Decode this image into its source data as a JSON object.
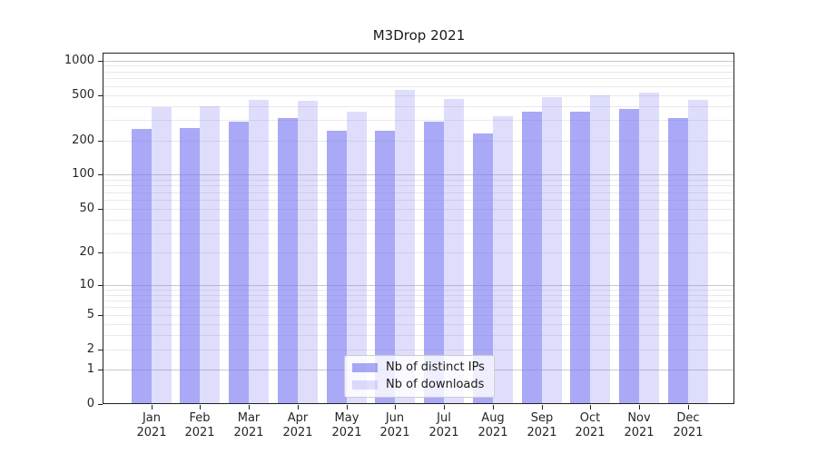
{
  "title": "M3Drop 2021",
  "legend": {
    "position": "lower center",
    "items": [
      {
        "label": "Nb of distinct IPs",
        "series_key": "distinct_ips"
      },
      {
        "label": "Nb of downloads",
        "series_key": "downloads"
      }
    ]
  },
  "colors": {
    "bar_base": "#7b7bf2",
    "distinct_ips_fill": "rgba(123,123,242,0.65)",
    "downloads_fill": "rgba(123,123,242,0.25)",
    "grid_major": "#c9c9c9",
    "grid_minor": "#e9e9e9",
    "axis_frame": "#222222",
    "text": "#262626"
  },
  "chart_data": {
    "type": "bar",
    "title": "M3Drop 2021",
    "categories": [
      "Jan 2021",
      "Feb 2021",
      "Mar 2021",
      "Apr 2021",
      "May 2021",
      "Jun 2021",
      "Jul 2021",
      "Aug 2021",
      "Sep 2021",
      "Oct 2021",
      "Nov 2021",
      "Dec 2021"
    ],
    "series": [
      {
        "name": "Nb of distinct IPs",
        "values": [
          250,
          255,
          290,
          315,
          245,
          245,
          290,
          230,
          355,
          360,
          380,
          315
        ]
      },
      {
        "name": "Nb of downloads",
        "values": [
          390,
          400,
          450,
          445,
          360,
          550,
          460,
          325,
          475,
          500,
          520,
          450
        ]
      }
    ],
    "xlabel": "",
    "ylabel": "",
    "yscale": "log1p",
    "yticks": [
      0,
      1,
      2,
      5,
      10,
      20,
      50,
      100,
      200,
      500,
      1000
    ],
    "ylim": [
      0,
      1172
    ],
    "grid": true,
    "legend_position": "lower center"
  }
}
